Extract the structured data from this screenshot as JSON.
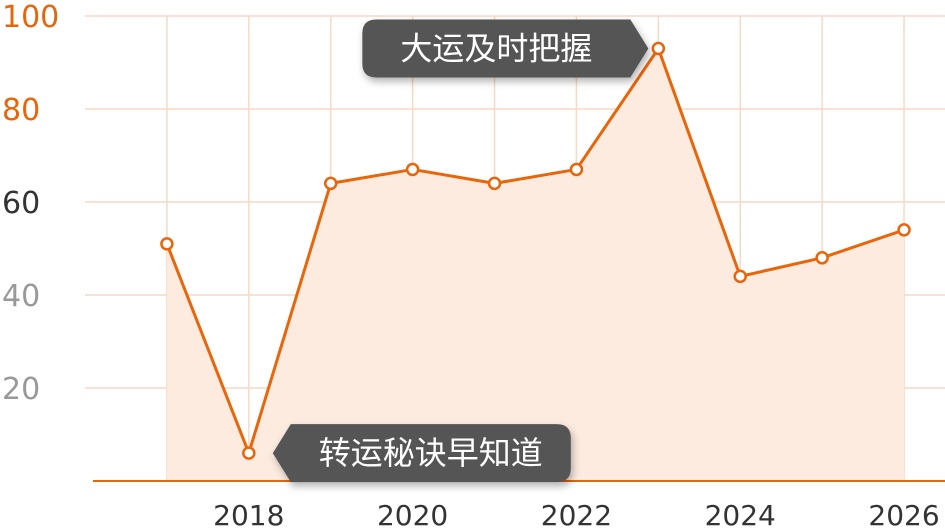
{
  "chart_data": {
    "type": "area",
    "x": [
      2017,
      2018,
      2019,
      2020,
      2021,
      2022,
      2023,
      2024,
      2025,
      2026
    ],
    "values": [
      51,
      6,
      64,
      67,
      64,
      67,
      93,
      44,
      48,
      54
    ],
    "xticks": [
      "2018",
      "2020",
      "2022",
      "2024",
      "2026"
    ],
    "yticks": [
      "20",
      "40",
      "60",
      "80",
      "100"
    ],
    "ylim": [
      0,
      100
    ],
    "xlim": [
      2016,
      2026.5
    ],
    "grid": true,
    "annotations": [
      {
        "text": "大运及时把握",
        "x": 2023,
        "y": 93,
        "side": "left"
      },
      {
        "text": "转运秘诀早知道",
        "x": 2018,
        "y": 6,
        "side": "right"
      }
    ],
    "colors": {
      "line": "#e8650a",
      "fill": "#fdebe0",
      "grid": "#f8d9c4",
      "axis": "#e8650a",
      "tooltip": "#555555",
      "ytick_colors": [
        "#999999",
        "#999999",
        "#333333",
        "#e8650a",
        "#e8650a"
      ]
    }
  }
}
